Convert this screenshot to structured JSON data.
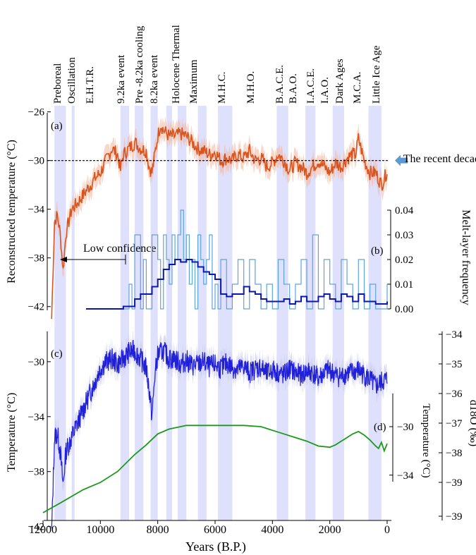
{
  "chart_data": [
    {
      "panel": "(a)",
      "type": "line",
      "ylabel": "Reconstructed temperature (°C)",
      "yticks": [
        -26,
        -30,
        -34,
        -38,
        -42
      ],
      "ylim": [
        -43,
        -25.5
      ],
      "reference_line": {
        "y": -30,
        "label": "The recent decades"
      },
      "annotation": "Low confidence",
      "colors": {
        "line": "#d9541e",
        "band": "#f2b49a"
      },
      "series": [
        {
          "x": [
            11700,
            11600,
            11500,
            11400,
            11300,
            11200,
            11000,
            10800,
            10500,
            10200,
            10000,
            9800,
            9600,
            9400,
            9300,
            9200,
            9000,
            8800,
            8600,
            8400,
            8300,
            8200,
            8100,
            8000,
            7900,
            7800,
            7600,
            7400,
            7200,
            7000,
            6800,
            6600,
            6400,
            6200,
            6000,
            5800,
            5600,
            5400,
            5200,
            5000,
            4800,
            4600,
            4400,
            4200,
            4000,
            3800,
            3600,
            3400,
            3200,
            3000,
            2800,
            2600,
            2400,
            2200,
            2000,
            1800,
            1600,
            1400,
            1200,
            1100,
            1000,
            800,
            600,
            400,
            200,
            100,
            0
          ],
          "values": [
            -43,
            -35,
            -34.5,
            -36,
            -39,
            -36,
            -34,
            -33.5,
            -32.5,
            -31.5,
            -31,
            -30,
            -29,
            -29.5,
            -30.8,
            -29.5,
            -29,
            -28.5,
            -29,
            -29.2,
            -30.5,
            -31,
            -29.5,
            -28,
            -27,
            -27.5,
            -28,
            -28,
            -27.8,
            -28,
            -28.5,
            -29,
            -29.2,
            -29.5,
            -29.3,
            -30,
            -29.8,
            -30,
            -29.5,
            -29.8,
            -29.2,
            -30,
            -29.8,
            -30.5,
            -30.2,
            -29.5,
            -30,
            -30.8,
            -30.2,
            -30.5,
            -31,
            -30.5,
            -30,
            -30.5,
            -31,
            -30.2,
            -30.5,
            -29.8,
            -29.5,
            -29.5,
            -28.2,
            -30,
            -31,
            -31,
            -32,
            -31.5,
            -30.8
          ]
        }
      ]
    },
    {
      "panel": "(b)",
      "type": "line",
      "ylabel": "Melt-layer frequency",
      "yticks": [
        "0.00",
        "0.01",
        "0.02",
        "0.03",
        "0.04"
      ],
      "ylim": [
        0,
        0.04
      ],
      "colors": {
        "raw": "#5fa3dd",
        "smooth": "#0b17b3"
      },
      "series": [
        {
          "x": [
            10500,
            9200,
            9000,
            8900,
            8800,
            8600,
            8500,
            8400,
            8200,
            8000,
            7900,
            7800,
            7700,
            7600,
            7500,
            7400,
            7300,
            7200,
            7100,
            7000,
            6900,
            6800,
            6700,
            6600,
            6500,
            6400,
            6300,
            6200,
            6100,
            6000,
            5900,
            5800,
            5600,
            5400,
            5200,
            5000,
            4800,
            4600,
            4400,
            4200,
            4000,
            3800,
            3600,
            3400,
            3200,
            3000,
            2800,
            2600,
            2400,
            2200,
            2000,
            1800,
            1600,
            1400,
            1200,
            1000,
            800,
            600,
            400,
            200,
            0
          ],
          "values": [
            0,
            0,
            0.01,
            0,
            0.03,
            0,
            0.02,
            0,
            0.03,
            0.02,
            0,
            0.03,
            0.02,
            0.01,
            0.03,
            0.02,
            0.03,
            0.04,
            0.02,
            0.03,
            0.01,
            0.02,
            0,
            0.03,
            0.02,
            0.01,
            0.02,
            0.03,
            0,
            0.01,
            0,
            0.02,
            0,
            0.01,
            0.02,
            0,
            0.02,
            0.01,
            0,
            0.01,
            0,
            0.02,
            0.01,
            0,
            0.01,
            0.02,
            0,
            0.03,
            0,
            0.02,
            0.01,
            0,
            0.02,
            0.01,
            0,
            0.02,
            0,
            0.01,
            0,
            0,
            0.01
          ]
        },
        {
          "x": [
            10500,
            9200,
            8800,
            8600,
            8400,
            8200,
            8000,
            7800,
            7600,
            7400,
            7200,
            7000,
            6800,
            6600,
            6400,
            6200,
            6000,
            5800,
            5600,
            5400,
            5200,
            5000,
            4800,
            4600,
            4400,
            4200,
            4000,
            3800,
            3600,
            3400,
            3200,
            3000,
            2800,
            2600,
            2400,
            2200,
            2000,
            1800,
            1600,
            1400,
            1200,
            1000,
            800,
            600,
            400,
            200,
            0
          ],
          "values": [
            0,
            0.001,
            0.004,
            0.006,
            0.006,
            0.009,
            0.012,
            0.016,
            0.018,
            0.02,
            0.019,
            0.02,
            0.019,
            0.017,
            0.015,
            0.014,
            0.012,
            0.006,
            0.005,
            0.006,
            0.006,
            0.009,
            0.007,
            0.006,
            0.004,
            0.003,
            0.003,
            0.003,
            0.004,
            0.002,
            0.003,
            0.005,
            0.003,
            0.003,
            0.005,
            0.006,
            0.004,
            0.003,
            0.006,
            0.005,
            0.003,
            0.006,
            0.003,
            0.003,
            0.002,
            0.002,
            0.003
          ]
        }
      ]
    },
    {
      "panel": "(c)",
      "type": "line",
      "ylabel": "Temperature (°C)",
      "yticks": [
        -30,
        -34,
        -38,
        -42
      ],
      "ylim": [
        -43.2,
        -27.8
      ],
      "y2label": "d18O (‰)",
      "y2ticks": [
        "-34",
        "-35",
        "-36",
        "-37",
        "-38",
        "-39",
        "-39"
      ],
      "xlabel": "Years (B.P.)",
      "xticks": [
        "12000",
        "10000",
        "8000",
        "6000",
        "4000",
        "2000",
        "0"
      ],
      "xlim": [
        12000,
        0
      ],
      "colors": {
        "line": "#2020d8",
        "band": "#c8c8f0"
      },
      "series": [
        {
          "x": [
            11700,
            11600,
            11500,
            11400,
            11300,
            11200,
            11000,
            10800,
            10600,
            10400,
            10200,
            10000,
            9800,
            9600,
            9400,
            9200,
            9000,
            8800,
            8600,
            8400,
            8300,
            8200,
            8100,
            8000,
            7800,
            7600,
            7400,
            7200,
            7000,
            6800,
            6600,
            6400,
            6200,
            6000,
            5800,
            5600,
            5400,
            5200,
            5000,
            4800,
            4600,
            4400,
            4200,
            4000,
            3800,
            3600,
            3400,
            3200,
            3000,
            2800,
            2600,
            2400,
            2200,
            2000,
            1800,
            1600,
            1400,
            1200,
            1000,
            800,
            600,
            400,
            200,
            0
          ],
          "values": [
            -42.5,
            -35.5,
            -35.2,
            -36.5,
            -39,
            -36.5,
            -35.5,
            -34.5,
            -33.5,
            -32.5,
            -31.5,
            -30.5,
            -30,
            -29.8,
            -30.2,
            -29.8,
            -29.3,
            -29.2,
            -29.8,
            -30.5,
            -32,
            -34,
            -31,
            -29.5,
            -29.2,
            -29.8,
            -29.8,
            -30.2,
            -29.9,
            -30.3,
            -30.2,
            -30,
            -30.4,
            -30.2,
            -30.5,
            -30.1,
            -30.4,
            -30.6,
            -30.3,
            -30.8,
            -30.5,
            -30.4,
            -30.9,
            -30.6,
            -30.8,
            -31,
            -30.5,
            -30.8,
            -31,
            -30.7,
            -30.8,
            -31.2,
            -30.8,
            -30.6,
            -31,
            -31.1,
            -30.8,
            -30.8,
            -30.6,
            -31,
            -31.3,
            -31.8,
            -31.5,
            -31.3
          ]
        }
      ]
    },
    {
      "panel": "(d)",
      "type": "line",
      "ylabel": "Temperature (°C)",
      "yticks": [
        -30,
        -34
      ],
      "ylim": [
        -36.4,
        -26.8
      ],
      "colors": {
        "line": "#1a9a1a"
      },
      "series": [
        {
          "x": [
            12000,
            11400,
            10600,
            10000,
            9400,
            8800,
            8400,
            8000,
            7600,
            7000,
            6000,
            5000,
            4400,
            4000,
            3600,
            3200,
            2800,
            2400,
            2000,
            1800,
            1600,
            1400,
            1200,
            1000,
            800,
            600,
            400,
            300,
            200,
            100,
            0
          ],
          "values": [
            -37.1,
            -36.3,
            -35.2,
            -34.6,
            -33.7,
            -32.3,
            -31.5,
            -30.6,
            -30.2,
            -29.9,
            -29.9,
            -29.9,
            -30.0,
            -30.3,
            -30.6,
            -30.9,
            -31.2,
            -31.6,
            -31.7,
            -31.5,
            -31.2,
            -30.9,
            -30.6,
            -30.4,
            -30.7,
            -31.1,
            -31.6,
            -31.8,
            -31.3,
            -32.0,
            -31.4
          ]
        }
      ]
    }
  ],
  "events": [
    "Preboreal",
    "Oscillation",
    "E.H.T.R.",
    "9.2ka event",
    "Pre -8.2ka cooling",
    "8.2ka event",
    "Holocene Thermal",
    "Maximum",
    "M.H.C.",
    "M.H.O.",
    "B.A.C.E.",
    "B.A.O.",
    "I.A.C.E.",
    "I.A.O.",
    "Dark Ages",
    "M.C.A.",
    "Little Ice Age"
  ],
  "bands": [
    [
      11600,
      11200
    ],
    [
      11000,
      10900
    ],
    [
      9300,
      9000
    ],
    [
      8800,
      8500
    ],
    [
      8250,
      8000
    ],
    [
      7700,
      7500
    ],
    [
      7300,
      7000
    ],
    [
      6600,
      6300
    ],
    [
      5900,
      5400
    ],
    [
      3850,
      3450
    ],
    [
      2850,
      2500
    ],
    [
      1900,
      1500
    ],
    [
      650,
      200
    ]
  ],
  "band_color": "#dfe0fb",
  "arrow_color": "#5b9bd5"
}
